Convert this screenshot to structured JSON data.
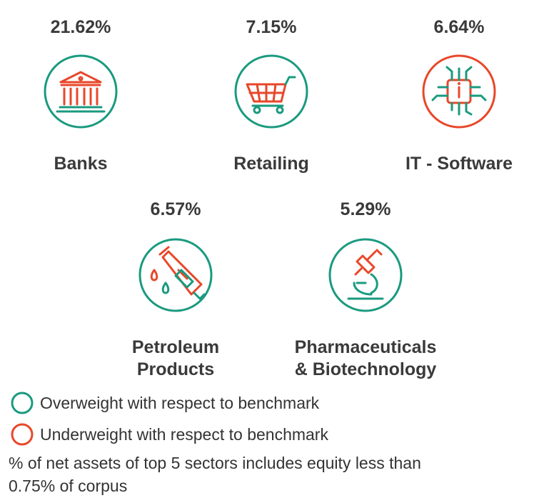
{
  "sectors": [
    {
      "percent": "21.62%",
      "name": [
        "Banks"
      ],
      "color": "#1a9a7f"
    },
    {
      "percent": "7.15%",
      "name": [
        "Retailing"
      ],
      "color": "#1a9a7f"
    },
    {
      "percent": "6.64%",
      "name": [
        "IT - Software"
      ],
      "color": "#e8472a"
    },
    {
      "percent": "6.57%",
      "name": [
        "Petroleum",
        "Products"
      ],
      "color": "#1a9a7f"
    },
    {
      "percent": "5.29%",
      "name": [
        "Pharmaceuticals",
        "& Biotechnology"
      ],
      "color": "#1a9a7f"
    }
  ],
  "legend": [
    {
      "label": "Overweight with respect to benchmark",
      "color": "#1a9a7f"
    },
    {
      "label": "Underweight with respect to benchmark",
      "color": "#e8472a"
    }
  ],
  "footnote": [
    "% of net assets of top 5 sectors includes equity less than",
    "0.75% of corpus"
  ]
}
